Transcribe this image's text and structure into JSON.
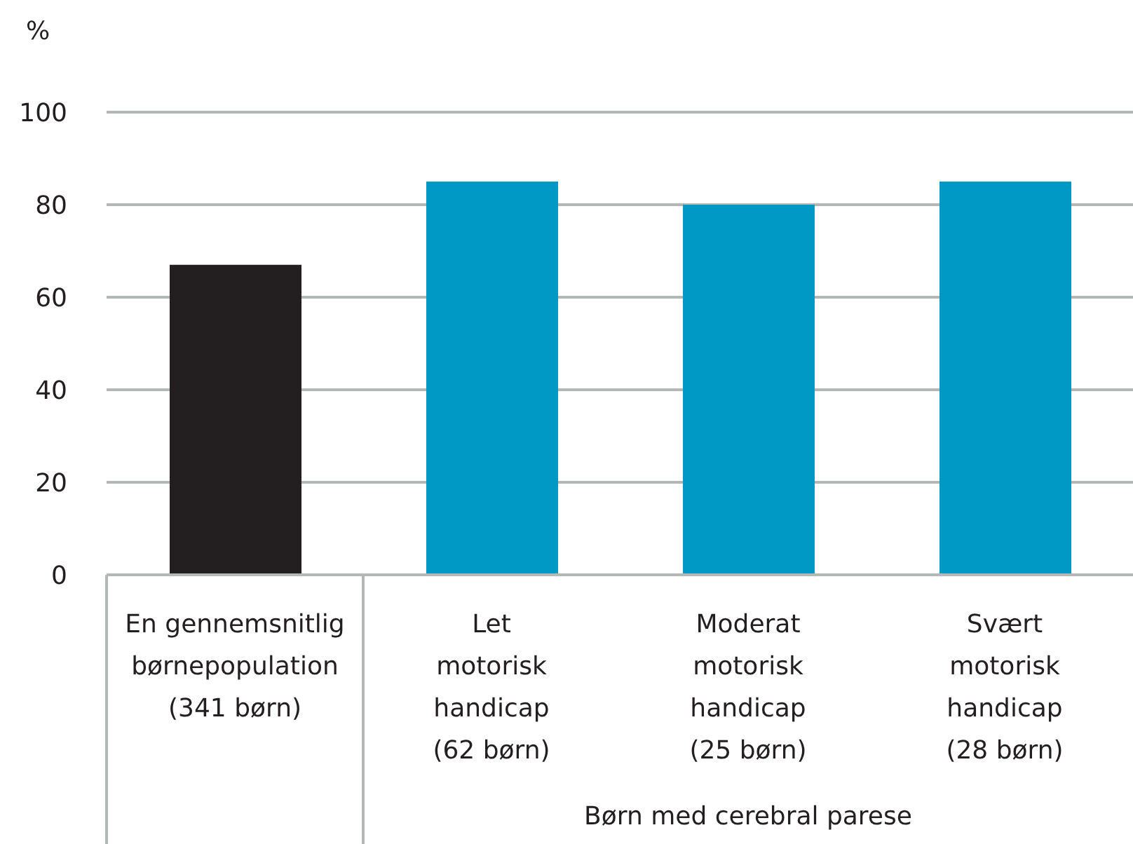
{
  "chart_data": {
    "type": "bar",
    "ylabel": "%",
    "categories": [
      "En gennemsnitlig\nbørnepopulation\n(341 børn)",
      "Let\nmotorisk\nhandicap\n(62 børn)",
      "Moderat\nmotorisk\nhandicap\n(25 børn)",
      "Svært\nmotorisk\nhandicap\n(28 børn)"
    ],
    "values": [
      67,
      85,
      80,
      85
    ],
    "colors": [
      "#231f20",
      "#0098c5",
      "#0098c5",
      "#0098c5"
    ],
    "ylim": [
      0,
      100
    ],
    "yticks": [
      0,
      20,
      40,
      60,
      80,
      100
    ],
    "grid": "y",
    "annotations": [
      "Børn med cerebral parese"
    ]
  }
}
